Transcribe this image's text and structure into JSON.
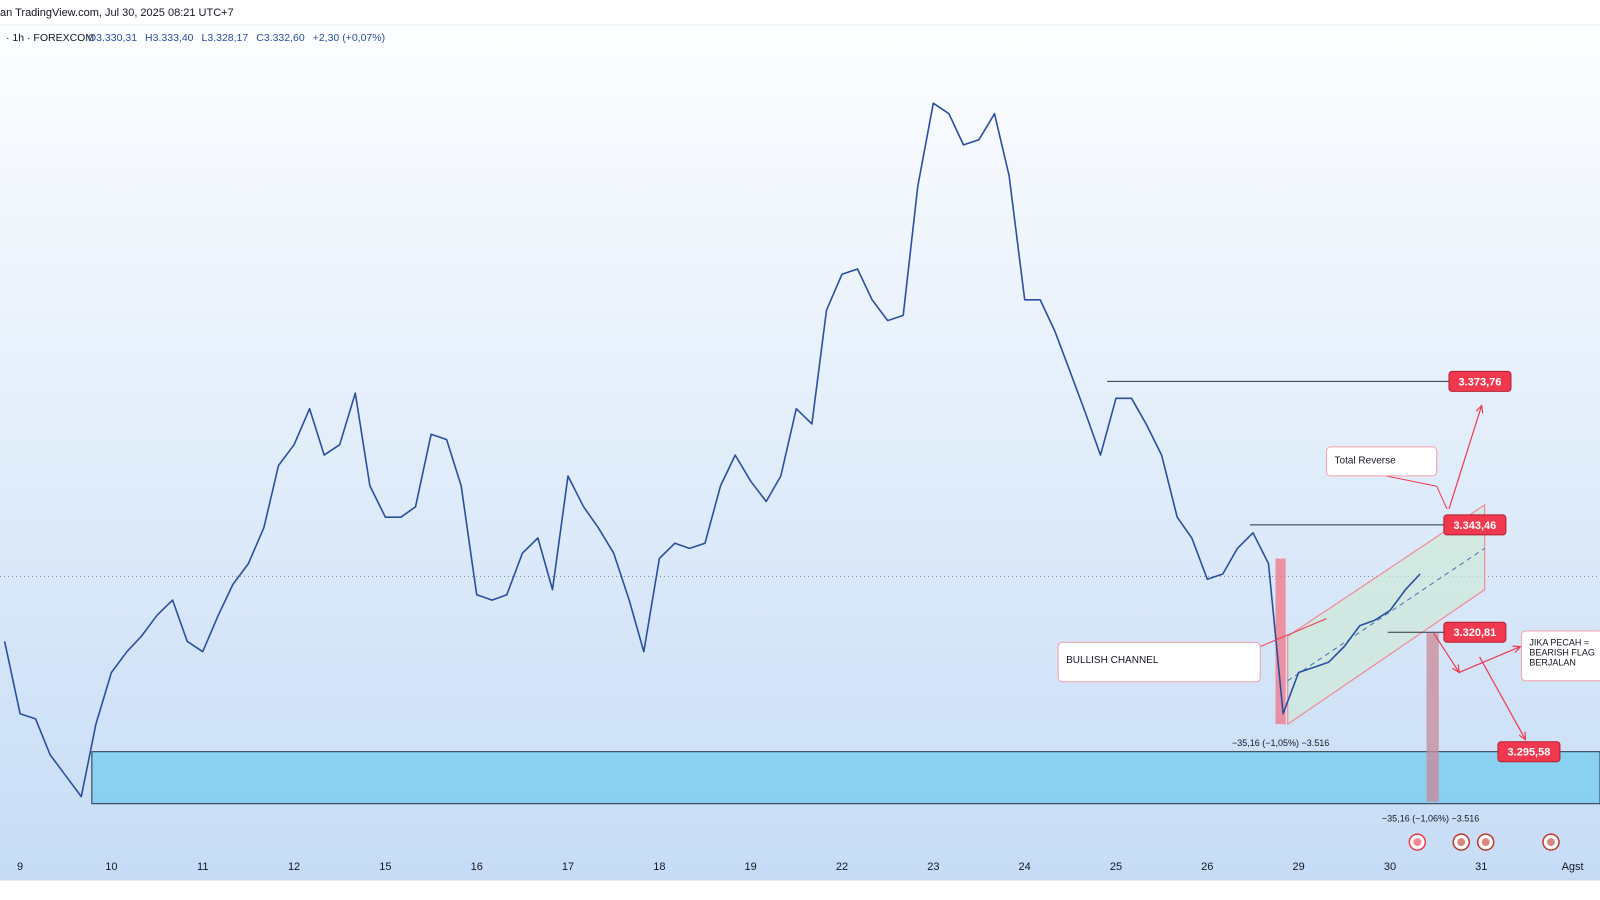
{
  "chart_data": {
    "type": "line",
    "title": "an TradingView.com, Jul 30, 2025 08:21 UTC+7",
    "symbol_info": "· 1h · FOREXCOM",
    "ohlc": [
      "O3.330,31",
      "H3.333,40",
      "L3.328,17",
      "C3.332,60",
      "+2,30 (+0,07%)"
    ],
    "last_price": 3332.6,
    "color": "#2a4fa0",
    "x": [
      -0.17,
      0,
      0.17,
      0.33,
      0.5,
      0.67,
      0.83,
      1,
      1.17,
      1.33,
      1.5,
      1.67,
      1.83,
      2,
      2.17,
      2.33,
      2.5,
      2.67,
      2.83,
      3,
      3.17,
      3.33,
      3.5,
      3.67,
      3.83,
      4,
      4.17,
      4.33,
      4.5,
      4.67,
      4.83,
      5,
      5.17,
      5.33,
      5.5,
      5.67,
      5.83,
      6,
      6.17,
      6.33,
      6.5,
      6.67,
      6.83,
      7,
      7.17,
      7.33,
      7.5,
      7.67,
      7.83,
      8,
      8.17,
      8.33,
      8.5,
      8.67,
      8.83,
      9,
      9.17,
      9.33,
      9.5,
      9.67,
      9.83,
      10,
      10.17,
      10.33,
      10.5,
      10.67,
      10.83,
      11,
      11.17,
      11.33,
      11.5,
      11.67,
      11.83,
      12,
      12.17,
      12.33,
      12.5,
      12.67,
      12.83,
      13,
      13.17,
      13.33,
      13.5,
      13.67,
      13.83,
      14,
      14.17,
      14.33,
      14.5,
      14.67,
      14.83,
      15,
      15.17,
      15.33
    ],
    "values": [
      3318.9,
      3303.6,
      3302.5,
      3294.9,
      3290.5,
      3286.1,
      3301.4,
      3312.3,
      3316.7,
      3320.0,
      3324.4,
      3327.6,
      3318.9,
      3316.7,
      3324.4,
      3330.9,
      3335.3,
      3342.9,
      3356.0,
      3360.4,
      3368.0,
      3358.2,
      3360.4,
      3371.3,
      3351.7,
      3345.1,
      3345.1,
      3347.3,
      3362.6,
      3361.5,
      3351.7,
      3328.7,
      3327.6,
      3328.7,
      3337.5,
      3340.7,
      3329.8,
      3353.8,
      3347.3,
      3342.9,
      3337.5,
      3327.6,
      3316.7,
      3336.4,
      3339.6,
      3338.5,
      3339.6,
      3351.7,
      3358.2,
      3352.7,
      3348.4,
      3353.8,
      3368.0,
      3364.8,
      3388.8,
      3396.4,
      3397.5,
      3391.0,
      3386.6,
      3387.7,
      3415.0,
      3432.5,
      3430.3,
      3423.7,
      3424.8,
      3430.3,
      3417.2,
      3391.0,
      3391.0,
      3384.4,
      3375.7,
      3366.9,
      3358.2,
      3370.2,
      3370.2,
      3364.8,
      3358.2,
      3345.1,
      3340.7,
      3332.0,
      3333.1,
      3338.5,
      3341.8,
      3335.3,
      3303.6,
      3312.3,
      3313.4,
      3314.5,
      3317.8,
      3322.2,
      3323.3,
      3325.4,
      3329.8,
      3333.1
    ],
    "xlim": [
      -0.22,
      17.3
    ],
    "ylim": [
      3268.7,
      3454.3
    ],
    "xticks": [
      {
        "value": 0,
        "label": "9"
      },
      {
        "value": 1,
        "label": "10"
      },
      {
        "value": 2,
        "label": "11"
      },
      {
        "value": 3,
        "label": "12"
      },
      {
        "value": 4,
        "label": "15"
      },
      {
        "value": 5,
        "label": "16"
      },
      {
        "value": 6,
        "label": "17"
      },
      {
        "value": 7,
        "label": "18"
      },
      {
        "value": 8,
        "label": "19"
      },
      {
        "value": 9,
        "label": "22"
      },
      {
        "value": 10,
        "label": "23"
      },
      {
        "value": 11,
        "label": "24"
      },
      {
        "value": 12,
        "label": "25"
      },
      {
        "value": 13,
        "label": "26"
      },
      {
        "value": 14,
        "label": "29"
      },
      {
        "value": 15,
        "label": "30"
      },
      {
        "value": 16,
        "label": "31"
      },
      {
        "value": 17,
        "label": "Agst"
      }
    ],
    "levels": [
      {
        "value": 3373.76,
        "label": "3.373,76"
      },
      {
        "value": 3343.46,
        "label": "3.343,46"
      },
      {
        "value": 3320.81,
        "label": "3.320,81"
      },
      {
        "value": 3295.58,
        "label": "3.295,58"
      }
    ],
    "zone": [
      3284.6,
      3295.58
    ],
    "annotations": {
      "bullish_channel": "BULLISH CHANNEL",
      "total_reverse": "Total Reverse",
      "bearish_flag": [
        "JIKA PECAH =",
        "BEARISH FLAG",
        "BERJALAN"
      ],
      "measure_1": "−35,16 (−1,05%) −3.516",
      "measure_2": "−35,16 (−1,06%) −3.516"
    }
  }
}
